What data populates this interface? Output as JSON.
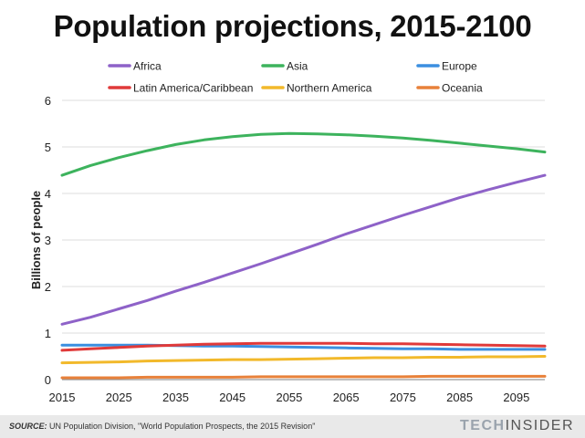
{
  "chart_data": {
    "type": "line",
    "title": "Population projections, 2015-2100",
    "ylabel": "Billions of people",
    "xlabel": "",
    "xlim": [
      2015,
      2100
    ],
    "ylim": [
      0,
      6
    ],
    "x_ticks": [
      2015,
      2025,
      2035,
      2045,
      2055,
      2065,
      2075,
      2085,
      2095
    ],
    "y_ticks": [
      0,
      1,
      2,
      3,
      4,
      5,
      6
    ],
    "grid": "horizontal",
    "legend_position": "top",
    "x": [
      2015,
      2020,
      2025,
      2030,
      2035,
      2040,
      2045,
      2050,
      2055,
      2060,
      2065,
      2070,
      2075,
      2080,
      2085,
      2090,
      2095,
      2100
    ],
    "series": [
      {
        "name": "Africa",
        "color": "#8e62c8",
        "values": [
          1.19,
          1.34,
          1.52,
          1.7,
          1.9,
          2.09,
          2.29,
          2.49,
          2.7,
          2.91,
          3.13,
          3.33,
          3.53,
          3.72,
          3.91,
          4.08,
          4.24,
          4.39
        ]
      },
      {
        "name": "Asia",
        "color": "#3db35d",
        "values": [
          4.39,
          4.6,
          4.77,
          4.92,
          5.05,
          5.15,
          5.22,
          5.27,
          5.29,
          5.28,
          5.26,
          5.23,
          5.19,
          5.14,
          5.08,
          5.02,
          4.96,
          4.89
        ]
      },
      {
        "name": "Europe",
        "color": "#3b8fe0",
        "values": [
          0.74,
          0.74,
          0.74,
          0.74,
          0.73,
          0.72,
          0.72,
          0.71,
          0.7,
          0.69,
          0.68,
          0.67,
          0.66,
          0.66,
          0.65,
          0.65,
          0.65,
          0.65
        ]
      },
      {
        "name": "Latin America/Caribbean",
        "color": "#e03a3a",
        "values": [
          0.63,
          0.66,
          0.69,
          0.72,
          0.74,
          0.76,
          0.77,
          0.78,
          0.78,
          0.78,
          0.78,
          0.77,
          0.77,
          0.76,
          0.75,
          0.74,
          0.73,
          0.72
        ]
      },
      {
        "name": "Northern America",
        "color": "#f2b92b",
        "values": [
          0.36,
          0.37,
          0.38,
          0.4,
          0.41,
          0.42,
          0.43,
          0.43,
          0.44,
          0.45,
          0.46,
          0.47,
          0.47,
          0.48,
          0.48,
          0.49,
          0.49,
          0.5
        ]
      },
      {
        "name": "Oceania",
        "color": "#e8813a",
        "values": [
          0.04,
          0.04,
          0.04,
          0.05,
          0.05,
          0.05,
          0.05,
          0.06,
          0.06,
          0.06,
          0.06,
          0.06,
          0.06,
          0.07,
          0.07,
          0.07,
          0.07,
          0.07
        ]
      }
    ]
  },
  "footer": {
    "source_label": "SOURCE:",
    "source_text": " UN Population Division, \"World Population Prospects, the 2015 Revision\"",
    "brand_tech": "TECH",
    "brand_insider": "INSIDER"
  }
}
